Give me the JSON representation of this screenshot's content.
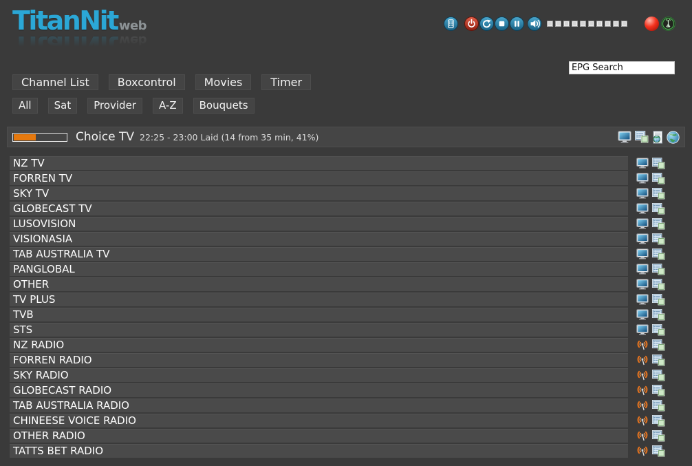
{
  "logo": {
    "title": "TitanNit",
    "suffix": "web"
  },
  "toolbar": {
    "icons": [
      "remote-control",
      "power",
      "reload",
      "stop",
      "pause",
      "volume-mute",
      "record",
      "signal"
    ],
    "volume_steps": 10
  },
  "search": {
    "value": "EPG Search"
  },
  "nav": {
    "items": [
      {
        "label": "Channel List"
      },
      {
        "label": "Boxcontrol"
      },
      {
        "label": "Movies"
      },
      {
        "label": "Timer"
      }
    ]
  },
  "filters": {
    "items": [
      {
        "label": "All"
      },
      {
        "label": "Sat"
      },
      {
        "label": "Provider"
      },
      {
        "label": "A-Z"
      },
      {
        "label": "Bouquets"
      }
    ]
  },
  "now_playing": {
    "channel": "Choice TV",
    "epg_info": "22:25 - 23:00 Laid (14 from 35 min, 41%)",
    "progress_percent": 41,
    "icons": [
      "tv-screen",
      "epg-list",
      "stream-page",
      "web-globe"
    ]
  },
  "channels": [
    {
      "name": "NZ TV",
      "type": "tv"
    },
    {
      "name": "FORREN TV",
      "type": "tv"
    },
    {
      "name": "SKY TV",
      "type": "tv"
    },
    {
      "name": "GLOBECAST TV",
      "type": "tv"
    },
    {
      "name": "LUSOVISION",
      "type": "tv"
    },
    {
      "name": "VISIONASIA",
      "type": "tv"
    },
    {
      "name": "TAB AUSTRALIA TV",
      "type": "tv"
    },
    {
      "name": "PANGLOBAL",
      "type": "tv"
    },
    {
      "name": "OTHER",
      "type": "tv"
    },
    {
      "name": "TV PLUS",
      "type": "tv"
    },
    {
      "name": "TVB",
      "type": "tv"
    },
    {
      "name": "STS",
      "type": "tv"
    },
    {
      "name": "NZ RADIO",
      "type": "radio"
    },
    {
      "name": "FORREN RADIO",
      "type": "radio"
    },
    {
      "name": "SKY RADIO",
      "type": "radio"
    },
    {
      "name": "GLOBECAST RADIO",
      "type": "radio"
    },
    {
      "name": "TAB AUSTRALIA RADIO",
      "type": "radio"
    },
    {
      "name": "CHINEESE VOICE RADIO",
      "type": "radio"
    },
    {
      "name": "OTHER RADIO",
      "type": "radio"
    },
    {
      "name": "TATTS BET RADIO",
      "type": "radio"
    }
  ],
  "colors": {
    "background": "#3a3a3a",
    "row_background": "#4a4a4a",
    "logo_blue": "#2ba7d6",
    "progress_orange": "#e6790e",
    "button_blue": "#2a7ca6",
    "power_red": "#c23b2b",
    "record_red": "#f5321e",
    "antenna_green": "#49a84f"
  }
}
